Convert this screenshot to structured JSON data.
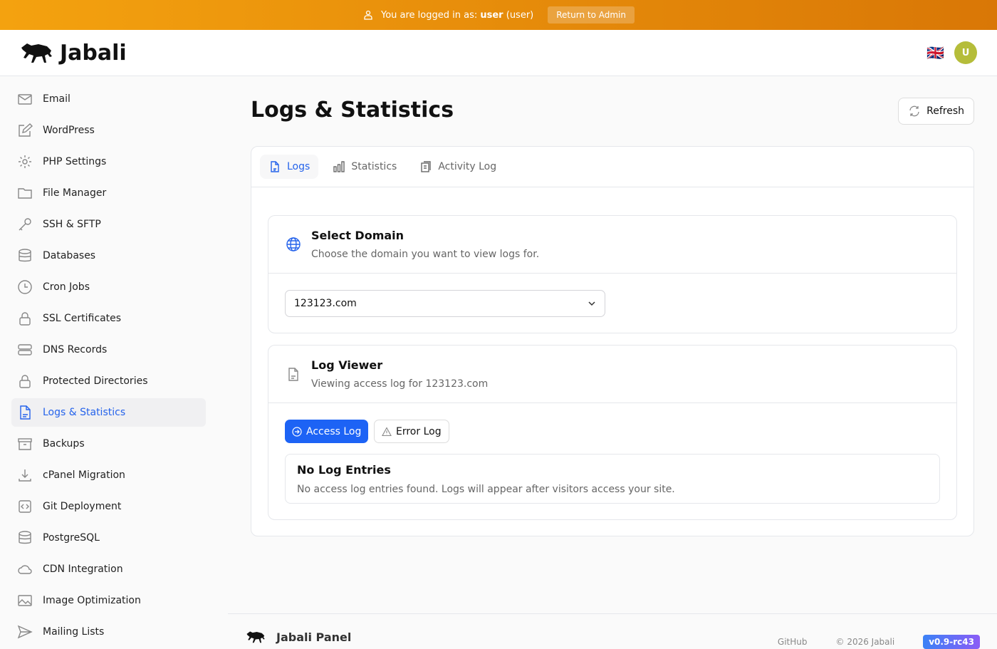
{
  "banner": {
    "prefix": "You are logged in as:",
    "username": "user",
    "role": "(user)",
    "return_label": "Return to Admin"
  },
  "header": {
    "brand": "Jabali",
    "language_flag": "🇬🇧",
    "avatar_initial": "U"
  },
  "sidebar": {
    "items": [
      {
        "label": "Email",
        "icon": "mail-icon"
      },
      {
        "label": "WordPress",
        "icon": "edit-icon"
      },
      {
        "label": "PHP Settings",
        "icon": "gear-icon"
      },
      {
        "label": "File Manager",
        "icon": "folder-icon"
      },
      {
        "label": "SSH & SFTP",
        "icon": "key-icon"
      },
      {
        "label": "Databases",
        "icon": "database-icon"
      },
      {
        "label": "Cron Jobs",
        "icon": "clock-icon"
      },
      {
        "label": "SSL Certificates",
        "icon": "lock-icon"
      },
      {
        "label": "DNS Records",
        "icon": "server-icon"
      },
      {
        "label": "Protected Directories",
        "icon": "lock-icon"
      },
      {
        "label": "Logs & Statistics",
        "icon": "document-icon",
        "active": true
      },
      {
        "label": "Backups",
        "icon": "archive-icon"
      },
      {
        "label": "cPanel Migration",
        "icon": "download-icon"
      },
      {
        "label": "Git Deployment",
        "icon": "code-icon"
      },
      {
        "label": "PostgreSQL",
        "icon": "database-icon"
      },
      {
        "label": "CDN Integration",
        "icon": "cloud-icon"
      },
      {
        "label": "Image Optimization",
        "icon": "image-icon"
      },
      {
        "label": "Mailing Lists",
        "icon": "send-icon"
      }
    ]
  },
  "page": {
    "title": "Logs & Statistics",
    "refresh_label": "Refresh",
    "tabs": [
      {
        "label": "Logs",
        "active": true
      },
      {
        "label": "Statistics"
      },
      {
        "label": "Activity Log"
      }
    ],
    "select_domain": {
      "title": "Select Domain",
      "description": "Choose the domain you want to view logs for.",
      "value": "123123.com"
    },
    "log_viewer": {
      "title": "Log Viewer",
      "description": "Viewing access log for 123123.com",
      "access_label": "Access Log",
      "error_label": "Error Log",
      "empty_title": "No Log Entries",
      "empty_text": "No access log entries found. Logs will appear after visitors access your site."
    }
  },
  "footer": {
    "brand": "Jabali Panel",
    "github": "GitHub",
    "copyright": "© 2026 Jabali",
    "version": "v0.9-rc43"
  },
  "colors": {
    "accent": "#2563eb",
    "banner": "#f4a20f",
    "avatar": "#b5bd3a"
  }
}
